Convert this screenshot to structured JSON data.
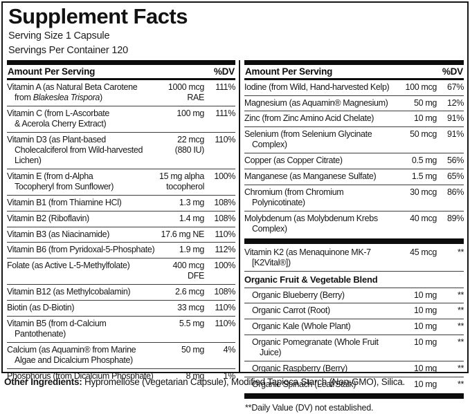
{
  "header": {
    "title": "Supplement Facts",
    "serving_size": "Serving Size 1 Capsule",
    "servings_per_container": "Servings Per Container 120"
  },
  "col_header": {
    "amount_label": "Amount Per Serving",
    "dv_label": "%DV"
  },
  "left_rows": [
    {
      "name_pre": "Vitamin A (as Natural Beta Carotene\nfrom ",
      "name_italic": "Blakeslea Trispora",
      "name_post": ")",
      "amount": "1000 mcg\nRAE",
      "dv": "111%"
    },
    {
      "name": "Vitamin C (from L-Ascorbate\n& Acerola Cherry Extract)",
      "amount": "100 mg",
      "dv": "111%"
    },
    {
      "name": "Vitamin D3 (as Plant-based\nCholecalciferol from Wild-harvested\nLichen)",
      "amount": "22 mcg\n(880 IU)",
      "dv": "110%"
    },
    {
      "name": "Vitamin E (from d-Alpha\nTocopheryl from Sunflower)",
      "amount": "15 mg alpha\ntocopherol",
      "dv": "100%"
    },
    {
      "name": "Vitamin B1 (from Thiamine HCl)",
      "amount": "1.3 mg",
      "dv": "108%"
    },
    {
      "name": "Vitamin B2 (Riboflavin)",
      "amount": "1.4 mg",
      "dv": "108%"
    },
    {
      "name": "Vitamin B3 (as Niacinamide)",
      "amount": "17.6 mg NE",
      "dv": "110%"
    },
    {
      "name": "Vitamin B6 (from Pyridoxal-5-Phosphate)",
      "amount": "1.9 mg",
      "dv": "112%"
    },
    {
      "name": "Folate (as Active L-5-Methylfolate)",
      "amount": "400 mcg\nDFE",
      "dv": "100%"
    },
    {
      "name": "Vitamin B12 (as Methylcobalamin)",
      "amount": "2.6 mcg",
      "dv": "108%"
    },
    {
      "name": "Biotin (as D-Biotin)",
      "amount": "33 mcg",
      "dv": "110%"
    },
    {
      "name": "Vitamin B5 (from d-Calcium\nPantothenate)",
      "amount": "5.5 mg",
      "dv": "110%"
    },
    {
      "name": "Calcium (as Aquamin® from Marine\nAlgae and Dicalcium Phosphate)",
      "amount": "50 mg",
      "dv": "4%"
    },
    {
      "name": "Phosphorus (from Dicalcium Phosphate)",
      "amount": "8 mg",
      "dv": "1%"
    }
  ],
  "right_rows": [
    {
      "name": "Iodine (from Wild, Hand-harvested Kelp)",
      "amount": "100 mcg",
      "dv": "67%"
    },
    {
      "name": "Magnesium (as Aquamin® Magnesium)",
      "amount": "50 mg",
      "dv": "12%"
    },
    {
      "name": "Zinc (from Zinc Amino Acid Chelate)",
      "amount": "10 mg",
      "dv": "91%"
    },
    {
      "name": "Selenium (from Selenium Glycinate\nComplex)",
      "amount": "50 mcg",
      "dv": "91%"
    },
    {
      "name": "Copper (as Copper Citrate)",
      "amount": "0.5 mg",
      "dv": "56%"
    },
    {
      "name": "Manganese (as Manganese Sulfate)",
      "amount": "1.5 mg",
      "dv": "65%"
    },
    {
      "name": "Chromium (from Chromium\nPolynicotinate)",
      "amount": "30 mcg",
      "dv": "86%"
    },
    {
      "name": "Molybdenum (as Molybdenum Krebs\nComplex)",
      "amount": "40 mcg",
      "dv": "89%"
    }
  ],
  "k2_row": {
    "name": "Vitamin K2 (as Menaquinone MK-7\n[K2Vital®])",
    "amount": "45 mcg",
    "dv": "**"
  },
  "blend": {
    "title": "Organic Fruit & Vegetable Blend",
    "items": [
      {
        "name": "Organic Blueberry (Berry)",
        "amount": "10 mg",
        "dv": "**"
      },
      {
        "name": "Organic Carrot (Root)",
        "amount": "10 mg",
        "dv": "**"
      },
      {
        "name": "Organic Kale (Whole Plant)",
        "amount": "10 mg",
        "dv": "**"
      },
      {
        "name": "Organic Pomegranate (Whole Fruit Juice)",
        "amount": "10 mg",
        "dv": "**"
      },
      {
        "name": "Organic Raspberry (Berry)",
        "amount": "10 mg",
        "dv": "**"
      },
      {
        "name": "Organic Spinach (Leaf/Stalk)",
        "amount": "10 mg",
        "dv": "**"
      }
    ]
  },
  "footnote": "**Daily Value (DV) not established.",
  "other_ingredients": {
    "label": "Other Ingredients:",
    "text": " Hypromellose (Vegetarian Capsule), Modified Tapioca Starch (Non-GMO), Silica."
  }
}
